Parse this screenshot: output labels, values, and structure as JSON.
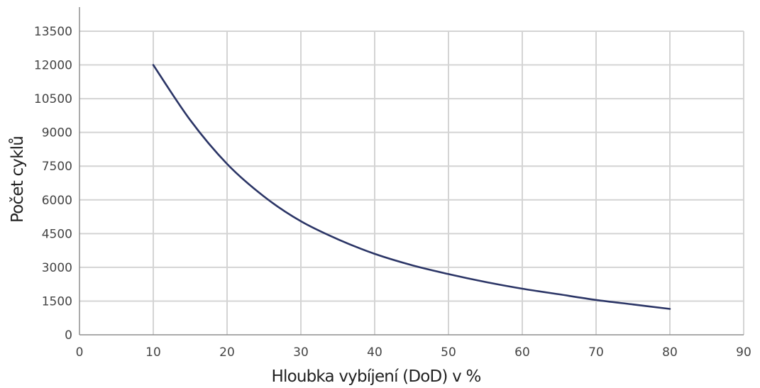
{
  "chart_data": {
    "type": "line",
    "xlabel": "Hloubka vybíjení (DoD) v %",
    "ylabel": "Počet cyklů",
    "xlim": [
      0,
      90
    ],
    "ylim": [
      0,
      13500
    ],
    "x_ticks": [
      0,
      10,
      20,
      30,
      40,
      50,
      60,
      70,
      80,
      90
    ],
    "y_ticks": [
      0,
      1500,
      3000,
      4500,
      6000,
      7500,
      9000,
      10500,
      12000,
      13500
    ],
    "grid": true,
    "line_color": "#2b3566",
    "series": [
      {
        "x": [
          10,
          15,
          20,
          25,
          30,
          35,
          40,
          45,
          50,
          55,
          60,
          65,
          70,
          75,
          80
        ],
        "values": [
          12000,
          9550,
          7600,
          6150,
          5050,
          4250,
          3600,
          3100,
          2700,
          2350,
          2050,
          1800,
          1550,
          1350,
          1150
        ]
      }
    ]
  }
}
